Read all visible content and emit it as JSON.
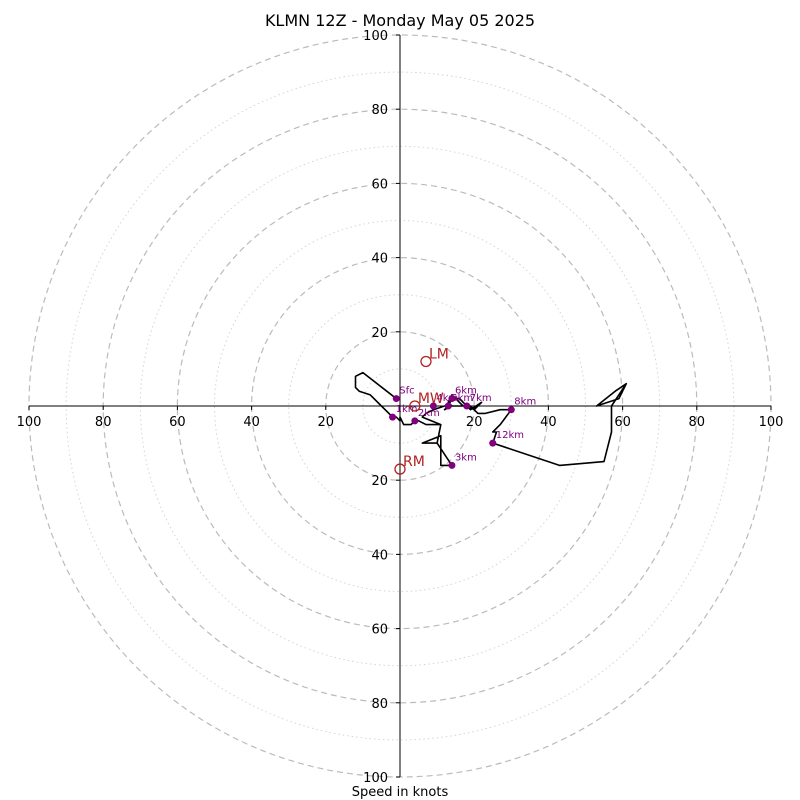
{
  "chart_data": {
    "type": "hodograph",
    "title": "KLMN 12Z - Monday May 05 2025",
    "xlabel": "Speed in knots",
    "units": "knots",
    "max_speed": 100,
    "ring_step": 10,
    "major_ring_step": 20,
    "grid": true,
    "tick_labels_x": [
      "100",
      "80",
      "60",
      "40",
      "20",
      "",
      "20",
      "40",
      "60",
      "80",
      "100"
    ],
    "tick_labels_y": [
      "100",
      "80",
      "60",
      "40",
      "20",
      "",
      "20",
      "40",
      "60",
      "80",
      "100"
    ],
    "trace": [
      [
        -1,
        2
      ],
      [
        -10,
        9
      ],
      [
        -12,
        8
      ],
      [
        -12,
        5
      ],
      [
        -11,
        4
      ],
      [
        -8,
        3
      ],
      [
        -5,
        0
      ],
      [
        -2,
        -3
      ],
      [
        -1,
        -3
      ],
      [
        0,
        -4
      ],
      [
        0,
        -3
      ],
      [
        1,
        -5
      ],
      [
        3,
        -5
      ],
      [
        4,
        -4
      ],
      [
        5,
        -4
      ],
      [
        7,
        -5
      ],
      [
        9,
        -5
      ],
      [
        10,
        -5
      ],
      [
        11,
        -5
      ],
      [
        10,
        -10
      ],
      [
        6,
        -10
      ],
      [
        11,
        -8
      ],
      [
        11,
        -16
      ],
      [
        14,
        -16
      ],
      [
        10,
        -10
      ],
      [
        11,
        -5
      ],
      [
        6,
        -3
      ],
      [
        7,
        -2
      ],
      [
        9,
        -1
      ],
      [
        12,
        0
      ],
      [
        13,
        0
      ],
      [
        14,
        0
      ],
      [
        12,
        -1
      ],
      [
        13,
        0
      ],
      [
        14,
        2
      ],
      [
        16,
        2
      ],
      [
        18,
        0
      ],
      [
        20,
        -1
      ],
      [
        22,
        1
      ],
      [
        19,
        -1
      ],
      [
        18,
        0
      ],
      [
        17,
        0
      ],
      [
        14,
        3
      ],
      [
        13,
        1
      ],
      [
        14,
        0
      ],
      [
        17,
        0
      ],
      [
        19,
        0
      ],
      [
        21,
        -2
      ],
      [
        23,
        -2
      ],
      [
        27,
        -1
      ],
      [
        30,
        -1
      ],
      [
        30,
        -1
      ],
      [
        27,
        -5
      ],
      [
        25,
        -7
      ],
      [
        26,
        -7
      ],
      [
        25,
        -10
      ],
      [
        43,
        -16
      ],
      [
        55,
        -15
      ],
      [
        57,
        -7
      ],
      [
        57,
        0
      ],
      [
        61,
        6
      ],
      [
        58,
        4
      ],
      [
        53,
        0
      ],
      [
        59,
        2
      ],
      [
        61,
        6
      ]
    ],
    "height_markers": [
      {
        "label": "Sfc",
        "u": -1,
        "v": 2
      },
      {
        "label": "1km",
        "u": -2,
        "v": -3
      },
      {
        "label": "2km",
        "u": 4,
        "v": -4
      },
      {
        "label": "3km",
        "u": 14,
        "v": -16
      },
      {
        "label": "4km",
        "u": 9,
        "v": 0
      },
      {
        "label": "5km",
        "u": 13,
        "v": 0
      },
      {
        "label": "6km",
        "u": 14,
        "v": 2
      },
      {
        "label": "7km",
        "u": 18,
        "v": 0
      },
      {
        "label": "8km",
        "u": 30,
        "v": -1
      },
      {
        "label": "12km",
        "u": 25,
        "v": -10
      }
    ],
    "storm_motions": [
      {
        "label": "LM",
        "u": 7,
        "v": 12
      },
      {
        "label": "RM",
        "u": 0,
        "v": -17
      },
      {
        "label": "MW",
        "u": 4,
        "v": 0
      }
    ],
    "colors": {
      "trace": "#000000",
      "markers": "#800080",
      "storm_motion": "#b22222",
      "grid": "#bbbbbb"
    }
  }
}
